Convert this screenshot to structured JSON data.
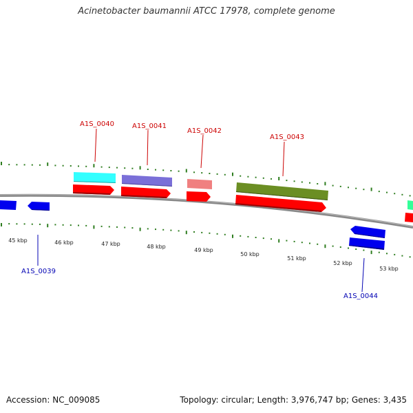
{
  "title": "Acinetobacter baumannii ATCC 17978, complete genome",
  "footer": {
    "accession": "Accession: NC_009085",
    "summary": "Topology: circular; Length: 3,976,747 bp; Genes: 3,435"
  },
  "scale_labels": [
    "45 kbp",
    "46 kbp",
    "47 kbp",
    "48 kbp",
    "49 kbp",
    "50 kbp",
    "51 kbp",
    "52 kbp",
    "53 kbp"
  ],
  "gene_labels": {
    "A1S_0039": "A1S_0039",
    "A1S_0040": "A1S_0040",
    "A1S_0041": "A1S_0041",
    "A1S_0042": "A1S_0042",
    "A1S_0043": "A1S_0043",
    "A1S_0044": "A1S_0044"
  },
  "colors": {
    "backbone": "#888888",
    "tick": "#2e7d1f",
    "forward_cds": "#ff0000",
    "reverse_cds": "#0000ee",
    "label_forward": "#cc0000",
    "label_reverse": "#0000b3",
    "feature_0040": "#33ffff",
    "feature_0041": "#7a6fd8",
    "feature_0042": "#f08080",
    "feature_0043": "#6b8e23",
    "feature_edge": "#33ff99"
  }
}
